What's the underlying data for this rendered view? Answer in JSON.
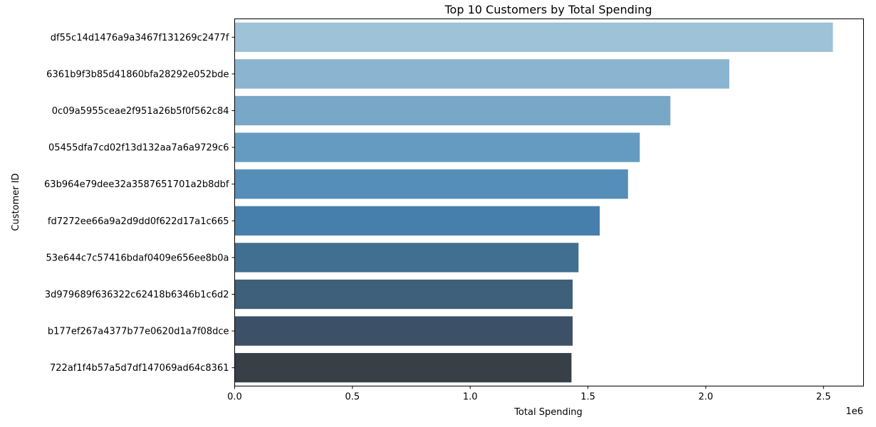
{
  "chart_data": {
    "type": "bar",
    "orientation": "horizontal",
    "title": "Top 10 Customers by Total Spending",
    "xlabel": "Total Spending",
    "ylabel": "Customer ID",
    "x_scale_note": "1e6",
    "xlim": [
      0,
      2.67
    ],
    "x_ticks": [
      0.0,
      0.5,
      1.0,
      1.5,
      2.0,
      2.5
    ],
    "x_tick_labels": [
      "0.0",
      "0.5",
      "1.0",
      "1.5",
      "2.0",
      "2.5"
    ],
    "grid": false,
    "legend": "none",
    "categories": [
      "df55c14d1476a9a3467f131269c2477f",
      "6361b9f3b85d41860bfa28292e052bde",
      "0c09a5955ceae2f951a26b5f0f562c84",
      "05455dfa7cd02f13d132aa7a6a9729c6",
      "63b964e79dee32a3587651701a2b8dbf",
      "fd7272ee66a9a2d9dd0f622d17a1c665",
      "53e644c7c57416bdaf0409e656ee8b0a",
      "3d979689f636322c62418b6346b1c6d2",
      "b177ef267a4377b77e0620d1a7f08dce",
      "722af1f4b57a5d7df147069ad64c8361"
    ],
    "values": [
      2.54,
      2.1,
      1.85,
      1.72,
      1.67,
      1.55,
      1.46,
      1.435,
      1.435,
      1.43
    ],
    "colors": [
      "#9ec2d7",
      "#8bb4d0",
      "#78a7c8",
      "#669bc1",
      "#548eb9",
      "#467fab",
      "#416f91",
      "#3e607a",
      "#3c5167",
      "#373f47"
    ]
  }
}
